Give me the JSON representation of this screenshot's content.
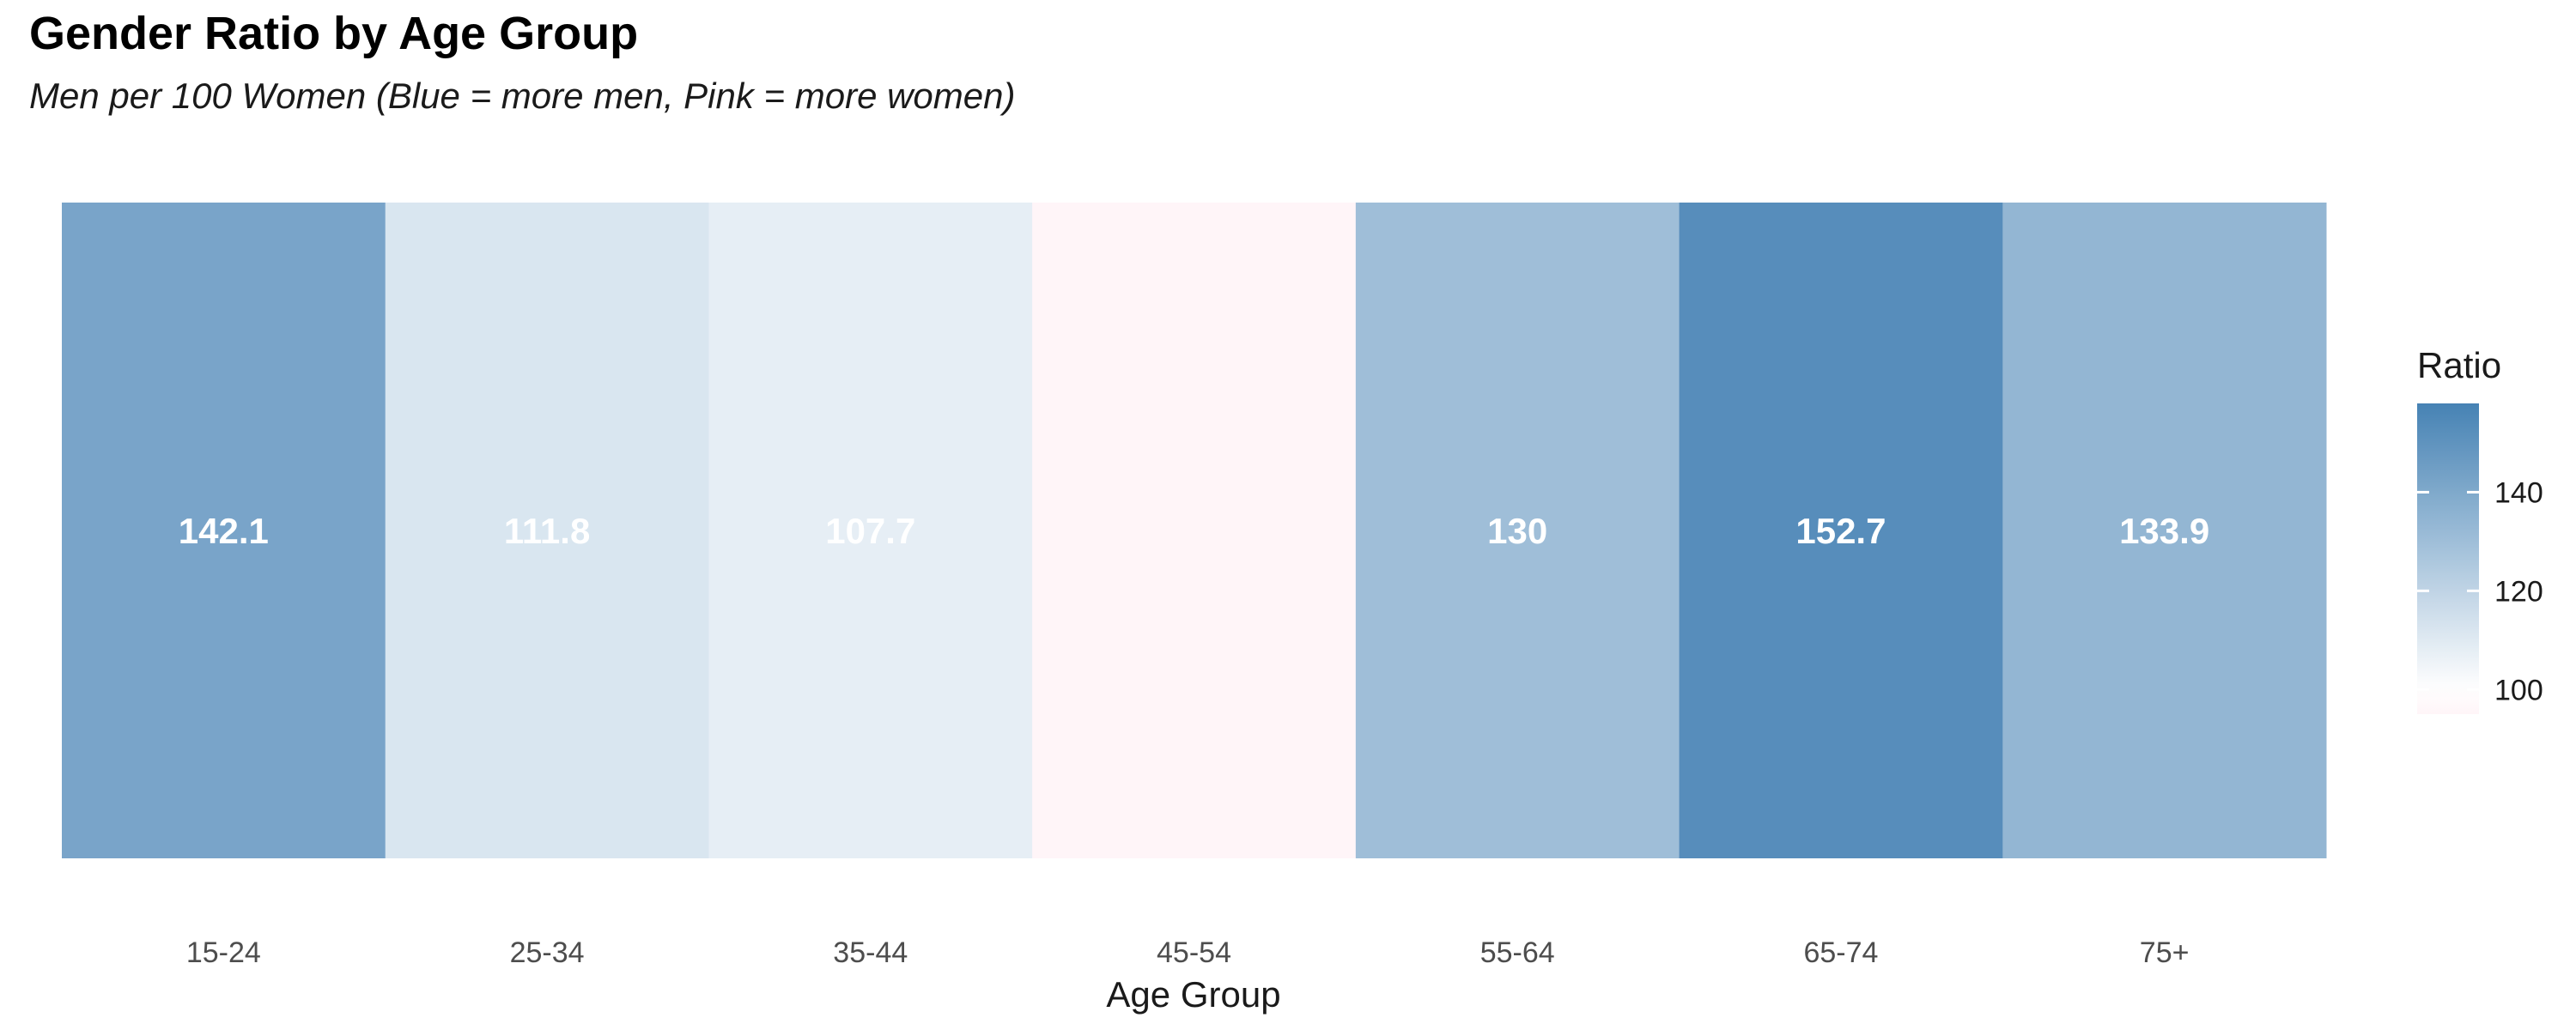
{
  "chart_data": {
    "type": "heatmap",
    "title": "Gender Ratio by Age Group",
    "subtitle": "Men per 100 Women (Blue = more men, Pink = more women)",
    "xlabel": "Age Group",
    "ylabel": "",
    "categories": [
      "15-24",
      "25-34",
      "35-44",
      "45-54",
      "55-64",
      "65-74",
      "75+"
    ],
    "values": [
      142.1,
      111.8,
      107.7,
      95.0,
      130.0,
      152.7,
      133.9
    ],
    "value_labels": [
      "142.1",
      "111.8",
      "107.7",
      "",
      "130",
      "152.7",
      "133.9"
    ],
    "grid": false,
    "legend": {
      "title": "Ratio",
      "placement": "right",
      "range": [
        95,
        158
      ],
      "ticks": [
        100,
        120,
        140
      ],
      "tick_labels": [
        "100",
        "120",
        "140"
      ],
      "low_color": "#fff5f8",
      "mid_color": "#ffffff",
      "high_color": "#4682b4",
      "midpoint": 100
    },
    "label_color": "#ffffff"
  }
}
